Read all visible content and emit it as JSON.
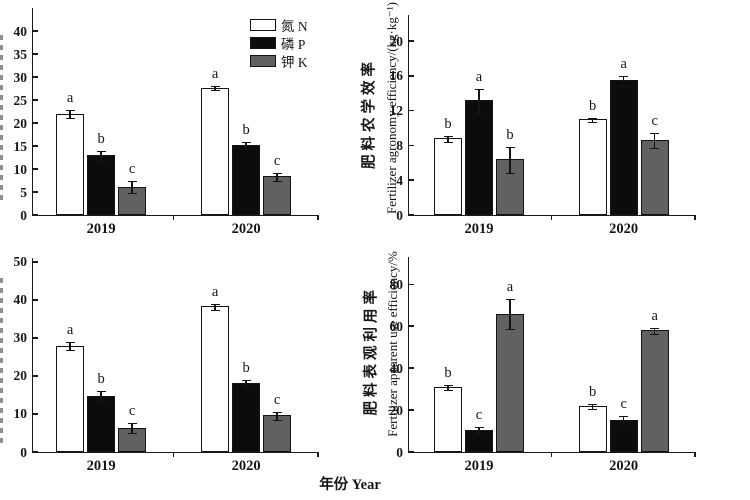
{
  "figure": {
    "xlabel": "年份 Year",
    "background": "#ffffff",
    "axis_color": "#1a1a1a",
    "legend": [
      {
        "label": "氮 N",
        "series": "N",
        "color": "#ffffff"
      },
      {
        "label": "磷 P",
        "series": "P",
        "color": "#0c0c0c"
      },
      {
        "label": "钾 K",
        "series": "K",
        "color": "#616161"
      }
    ]
  },
  "chart_data": [
    {
      "type": "bar",
      "position": "top-left",
      "ylabel_zh": "",
      "ylabel_en": "",
      "ylabel_clipped": true,
      "ylim": [
        0,
        45
      ],
      "yticks": [
        0,
        5,
        10,
        15,
        20,
        25,
        30,
        35,
        40
      ],
      "categories": [
        "2019",
        "2020"
      ],
      "series": [
        {
          "name": "N",
          "values": [
            22,
            27.7
          ],
          "errors": [
            0.8,
            0.4
          ],
          "letters": [
            "a",
            "a"
          ]
        },
        {
          "name": "P",
          "values": [
            13,
            15.2
          ],
          "errors": [
            1.0,
            0.6
          ],
          "letters": [
            "b",
            "b"
          ]
        },
        {
          "name": "K",
          "values": [
            6.1,
            8.4
          ],
          "errors": [
            1.2,
            0.8
          ],
          "letters": [
            "c",
            "c"
          ]
        }
      ],
      "has_legend": true
    },
    {
      "type": "bar",
      "position": "top-right",
      "ylabel_zh": "肥料农学效率",
      "ylabel_en": "Fertilizer agronomy efficiency/(kg·kg⁻¹)",
      "ylabel_clipped": false,
      "ylim": [
        0,
        23
      ],
      "yticks": [
        0,
        4,
        8,
        12,
        16,
        20
      ],
      "categories": [
        "2019",
        "2020"
      ],
      "series": [
        {
          "name": "N",
          "values": [
            8.8,
            11.0
          ],
          "errors": [
            0.3,
            0.2
          ],
          "letters": [
            "b",
            "b"
          ]
        },
        {
          "name": "P",
          "values": [
            13.2,
            15.5
          ],
          "errors": [
            1.3,
            0.5
          ],
          "letters": [
            "a",
            "a"
          ]
        },
        {
          "name": "K",
          "values": [
            6.4,
            8.6
          ],
          "errors": [
            1.4,
            0.8
          ],
          "letters": [
            "b",
            "c"
          ]
        }
      ],
      "has_legend": false
    },
    {
      "type": "bar",
      "position": "bottom-left",
      "ylabel_zh": "",
      "ylabel_en": "",
      "ylabel_clipped": true,
      "ylim": [
        0,
        51
      ],
      "yticks": [
        0,
        10,
        20,
        30,
        40,
        50
      ],
      "categories": [
        "2019",
        "2020"
      ],
      "series": [
        {
          "name": "N",
          "values": [
            28,
            38.3
          ],
          "errors": [
            1.0,
            0.6
          ],
          "letters": [
            "a",
            "a"
          ]
        },
        {
          "name": "P",
          "values": [
            14.8,
            18.2
          ],
          "errors": [
            1.3,
            0.8
          ],
          "letters": [
            "b",
            "b"
          ]
        },
        {
          "name": "K",
          "values": [
            6.4,
            9.6
          ],
          "errors": [
            1.2,
            0.9
          ],
          "letters": [
            "c",
            "c"
          ]
        }
      ],
      "has_legend": false
    },
    {
      "type": "bar",
      "position": "bottom-right",
      "ylabel_zh": "肥料表观利用率",
      "ylabel_en": "Fertilizer apparent use efficiency/%",
      "ylabel_clipped": false,
      "ylim": [
        0,
        93
      ],
      "yticks": [
        0,
        20,
        40,
        60,
        80
      ],
      "categories": [
        "2019",
        "2020"
      ],
      "series": [
        {
          "name": "N",
          "values": [
            31,
            22
          ],
          "errors": [
            0.8,
            1.0
          ],
          "letters": [
            "b",
            "b"
          ]
        },
        {
          "name": "P",
          "values": [
            10.5,
            15.5
          ],
          "errors": [
            1.2,
            1.5
          ],
          "letters": [
            "c",
            "c"
          ]
        },
        {
          "name": "K",
          "values": [
            66,
            58
          ],
          "errors": [
            7.0,
            1.3
          ],
          "letters": [
            "a",
            "a"
          ]
        }
      ],
      "has_legend": false
    }
  ]
}
